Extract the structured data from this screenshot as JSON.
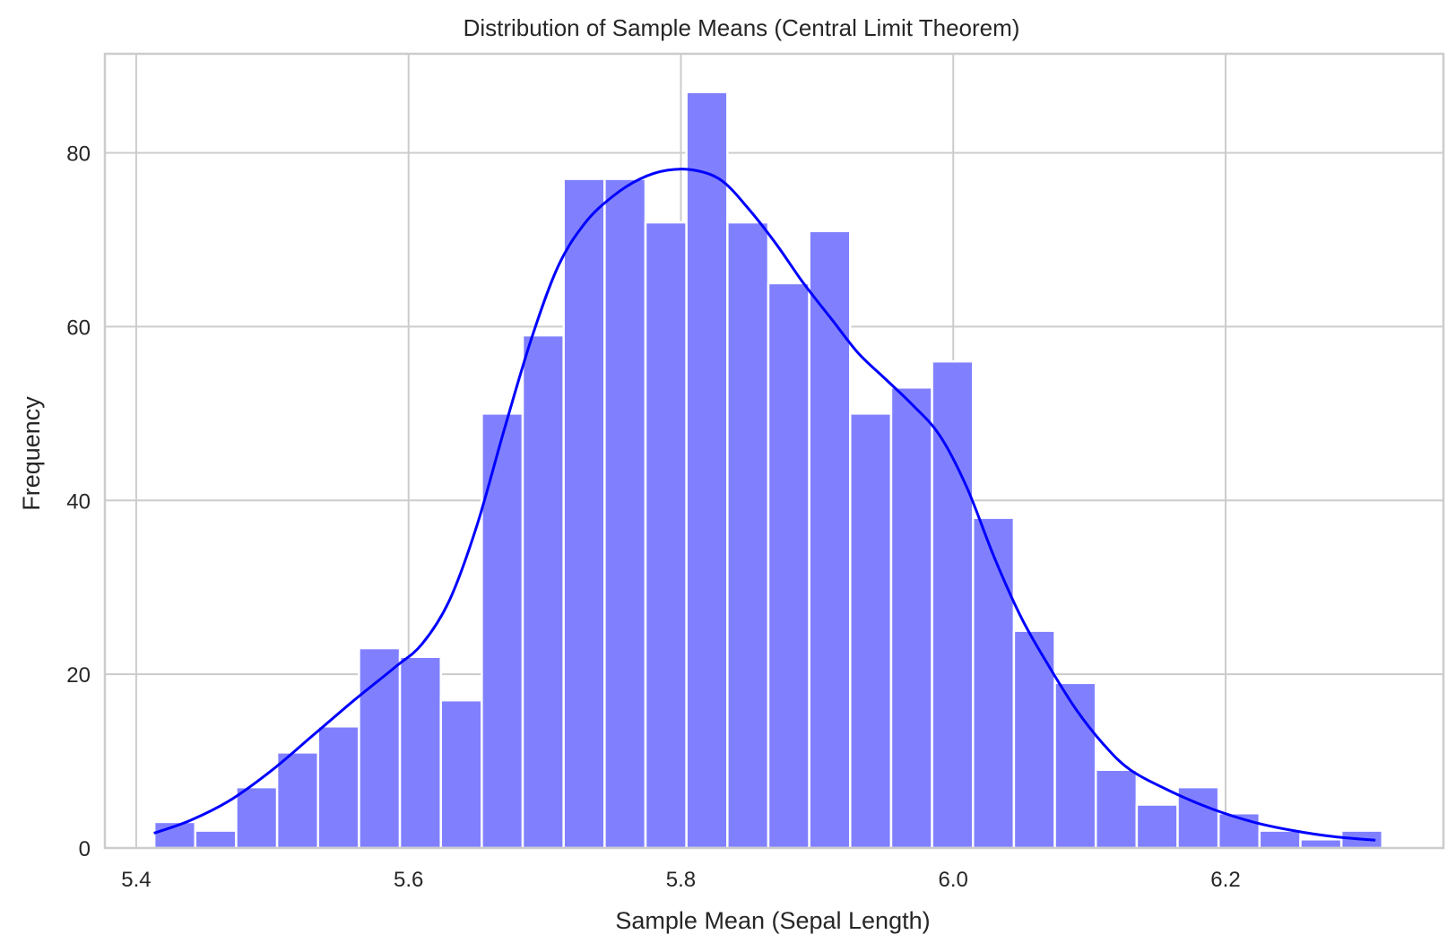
{
  "chart_data": {
    "type": "bar",
    "title": "Distribution of Sample Means (Central Limit Theorem)",
    "xlabel": "Sample Mean (Sepal Length)",
    "ylabel": "Frequency",
    "xlim": [
      5.377,
      6.36
    ],
    "ylim": [
      0,
      91.4
    ],
    "xticks": [
      5.4,
      5.6,
      5.8,
      6.0,
      6.2
    ],
    "xtick_labels": [
      "5.4",
      "5.6",
      "5.8",
      "6.0",
      "6.2"
    ],
    "yticks": [
      0,
      20,
      40,
      60,
      80
    ],
    "ytick_labels": [
      "0",
      "20",
      "40",
      "60",
      "80"
    ],
    "grid": true,
    "legend": "none",
    "bins": {
      "start": 5.4133,
      "width": 0.03006,
      "counts": [
        3,
        2,
        7,
        11,
        14,
        23,
        22,
        17,
        50,
        59,
        77,
        77,
        72,
        87,
        72,
        65,
        71,
        50,
        53,
        56,
        38,
        25,
        19,
        9,
        5,
        7,
        4,
        2,
        1,
        2
      ]
    },
    "kde": {
      "x": [
        5.413,
        5.44,
        5.47,
        5.5,
        5.53,
        5.56,
        5.59,
        5.61,
        5.63,
        5.65,
        5.67,
        5.69,
        5.71,
        5.73,
        5.75,
        5.77,
        5.79,
        5.81,
        5.83,
        5.85,
        5.87,
        5.89,
        5.91,
        5.93,
        5.95,
        5.97,
        5.99,
        6.01,
        6.03,
        6.05,
        6.07,
        6.09,
        6.11,
        6.13,
        6.16,
        6.19,
        6.22,
        6.25,
        6.28,
        6.31
      ],
      "y": [
        1.7,
        3.2,
        5.6,
        9.0,
        13.0,
        17.0,
        20.8,
        23.5,
        28.5,
        37.0,
        48.0,
        58.5,
        67.0,
        72.0,
        75.0,
        77.0,
        78.0,
        78.0,
        76.8,
        73.5,
        69.5,
        65.0,
        61.0,
        57.0,
        54.0,
        51.0,
        47.5,
        41.5,
        33.5,
        26.5,
        21.0,
        16.0,
        12.0,
        9.0,
        6.5,
        4.5,
        3.0,
        2.0,
        1.3,
        0.9
      ]
    },
    "colors": {
      "bar_fill": "#8080ff",
      "bar_edge": "#ffffff",
      "kde_line": "#0000ff",
      "grid": "#cccccc",
      "spine": "#cccccc"
    }
  }
}
